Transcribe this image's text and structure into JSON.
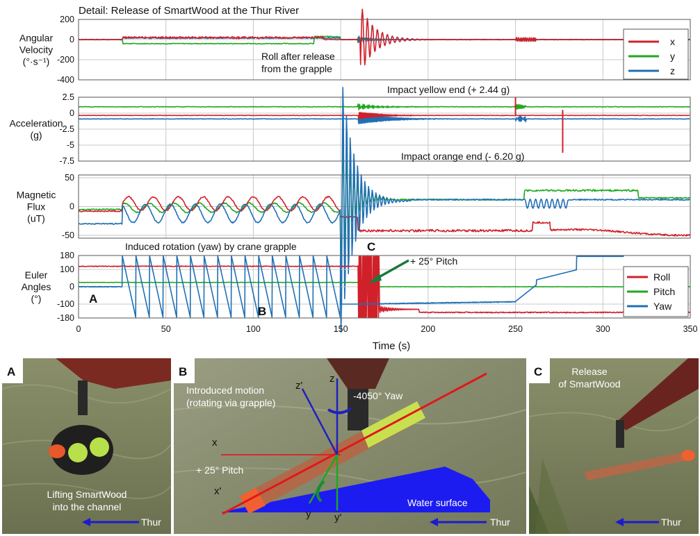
{
  "figure_title": "Detail: Release of SmartWood at the Thur River",
  "colors": {
    "red": "#d0202a",
    "green": "#1ea81e",
    "blue": "#1f6fb5",
    "grid": "#c8c8c8"
  },
  "chart_data": [
    {
      "type": "line",
      "id": "angular",
      "ylabel_lines": [
        "Angular",
        "Velocity",
        "(°·s⁻¹)"
      ],
      "ylim": [
        -400,
        200
      ],
      "yticks": [
        200,
        0,
        -200,
        -400
      ],
      "xlim": [
        0,
        350
      ],
      "grid": true,
      "legend_position": "top-right",
      "series": [
        {
          "name": "x",
          "color": "#d0202a",
          "signal": "burst"
        },
        {
          "name": "y",
          "color": "#1ea81e",
          "signal": "offset"
        },
        {
          "name": "z",
          "color": "#1f6fb5",
          "signal": "flat"
        }
      ],
      "annotations": [
        {
          "text_lines": [
            "Roll after release",
            "from the grapple"
          ],
          "x": 108,
          "y": -90
        }
      ]
    },
    {
      "type": "line",
      "id": "acceleration",
      "ylabel_lines": [
        "Acceleration",
        "(g)"
      ],
      "ylim": [
        -7.5,
        2.5
      ],
      "yticks": [
        2.5,
        0,
        -2.5,
        -5,
        -7.5
      ],
      "ytick_labels": [
        "2.5",
        "0",
        "-2.5",
        "-5",
        "-7.5"
      ],
      "xlim": [
        0,
        350
      ],
      "grid": true,
      "series": [
        {
          "name": "x",
          "color": "#d0202a",
          "base": -0.35
        },
        {
          "name": "y",
          "color": "#1ea81e",
          "base": 1.0
        },
        {
          "name": "z",
          "color": "#1f6fb5",
          "base": -0.9
        }
      ],
      "annotations": [
        {
          "text": "Impact yellow end  (+ 2.44 g)",
          "x": 250,
          "peak": 2.44
        },
        {
          "text": "Impact orange end (- 6.20 g)",
          "x": 277,
          "peak": -6.2
        }
      ]
    },
    {
      "type": "line",
      "id": "magnetic",
      "ylabel_lines": [
        "Magnetic",
        "Flux",
        "(uT)"
      ],
      "ylim": [
        -55,
        55
      ],
      "yticks": [
        50,
        0,
        -50
      ],
      "xlim": [
        0,
        350
      ],
      "grid": true
    },
    {
      "type": "line",
      "id": "euler",
      "ylabel_lines": [
        "Euler",
        "Angles",
        "(°)"
      ],
      "ylim": [
        -180,
        180
      ],
      "yticks": [
        180,
        100,
        0,
        -100,
        -180
      ],
      "xlim": [
        0,
        350
      ],
      "xticks": [
        0,
        50,
        100,
        150,
        200,
        250,
        300,
        350
      ],
      "xlabel": "Time (s)",
      "grid": true,
      "legend_position": "bottom-right",
      "series": [
        {
          "name": "Roll",
          "color": "#d0202a"
        },
        {
          "name": "Pitch",
          "color": "#1ea81e"
        },
        {
          "name": "Yaw",
          "color": "#1f6fb5"
        }
      ],
      "annotations": [
        {
          "text": "Induced rotation (yaw) by crane grapple",
          "x": 65
        },
        {
          "text": "+ 25° Pitch",
          "x": 172
        }
      ],
      "markers": [
        {
          "label": "A",
          "x": 5,
          "y": -40
        },
        {
          "label": "B",
          "x": 104,
          "y": -160
        },
        {
          "label": "C",
          "x": 164,
          "y": 200
        }
      ]
    }
  ],
  "photos": [
    {
      "letter": "A",
      "caption_lines": [
        "Lifting SmartWood",
        "into the channel"
      ],
      "river": "Thur"
    },
    {
      "letter": "B",
      "labels": {
        "motion_lines": [
          "Introduced motion",
          "(rotating via grapple)"
        ],
        "yaw": "-4050° Yaw",
        "pitch": "+ 25° Pitch",
        "water": "Water surface",
        "axes": [
          "z'",
          "z",
          "x",
          "x'",
          "y",
          "y'"
        ]
      },
      "river": "Thur"
    },
    {
      "letter": "C",
      "caption_lines": [
        "Release",
        "of SmartWood"
      ],
      "river": "Thur"
    }
  ]
}
